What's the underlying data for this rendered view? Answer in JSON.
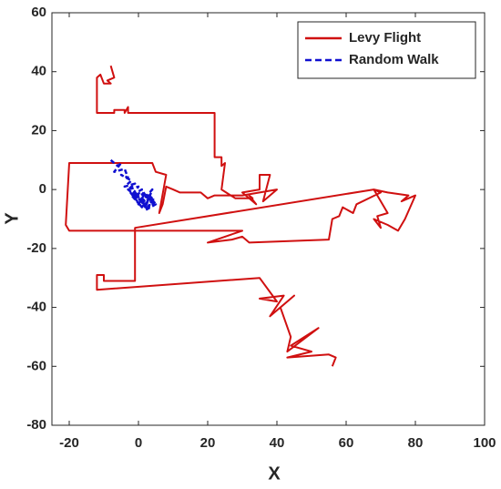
{
  "chart_data": {
    "type": "line",
    "x_label": "X",
    "y_label": "Y",
    "xlim": [
      -25,
      100
    ],
    "xticks": [
      -20,
      0,
      20,
      40,
      60,
      80,
      100
    ],
    "ylim": [
      -80,
      60
    ],
    "yticks": [
      -80,
      -60,
      -40,
      -20,
      0,
      20,
      40,
      60
    ],
    "legend": "top-right",
    "series": [
      {
        "name": "Levy Flight",
        "color": "#d01010",
        "line_style": "solid",
        "x": [
          -8,
          -7,
          -9,
          -8,
          -10,
          -11,
          -12,
          -12,
          -7,
          -7,
          -4,
          -4,
          -3,
          -3,
          22,
          22,
          24,
          24,
          25,
          24,
          28,
          33,
          32,
          34,
          30,
          35,
          35,
          38,
          36,
          39,
          40,
          30,
          22,
          20,
          18,
          12,
          10,
          8,
          7,
          6,
          8,
          5,
          4,
          -20,
          -21,
          -20,
          30,
          20,
          27,
          30,
          32,
          55,
          56,
          58,
          59,
          62,
          63,
          70,
          68,
          72,
          78,
          76,
          80,
          77,
          75,
          72,
          68,
          70,
          69,
          72,
          68,
          -1,
          -1,
          -10,
          -10,
          -12,
          -12,
          35,
          40,
          35,
          42,
          38,
          45,
          41,
          44,
          43,
          52,
          44,
          50,
          43,
          55,
          57,
          56
        ],
        "values": [
          42,
          38,
          37,
          36,
          36,
          39,
          38,
          26,
          26,
          27,
          27,
          26,
          28,
          26,
          26,
          11,
          11,
          8,
          9,
          0,
          -3,
          -3,
          -2,
          -5,
          -1,
          0,
          5,
          5,
          -4,
          -1,
          0,
          -2,
          -2,
          -3,
          -1,
          -1,
          0,
          1,
          -5,
          -8,
          5,
          6,
          9,
          9,
          -12,
          -14,
          -14,
          -18,
          -17,
          -16,
          -18,
          -17,
          -10,
          -9,
          -6,
          -8,
          -5,
          -1,
          0,
          -1,
          -2,
          -4,
          -2,
          -10,
          -14,
          -12,
          -10,
          -13,
          -9,
          -8,
          0,
          -13,
          -31,
          -31,
          -29,
          -29,
          -34,
          -30,
          -38,
          -37,
          -36,
          -43,
          -36,
          -40,
          -50,
          -55,
          -47,
          -53,
          -55,
          -57,
          -56,
          -57,
          -60
        ]
      },
      {
        "name": "Random Walk",
        "color": "#1010d0",
        "line_style": "dashed",
        "x": [
          -8,
          -6,
          -5,
          -7,
          -4,
          -3,
          -5,
          -2,
          -4,
          -1,
          -3,
          0,
          -2,
          1,
          -1,
          2,
          0,
          3,
          1,
          4,
          2,
          5,
          3,
          1,
          4,
          2,
          0,
          3,
          -1,
          2,
          -2,
          1,
          -3,
          0,
          2,
          4,
          3,
          5,
          1,
          3
        ],
        "values": [
          10,
          8,
          9,
          6,
          7,
          4,
          5,
          3,
          1,
          2,
          0,
          1,
          -2,
          0,
          -3,
          -1,
          -5,
          -3,
          -6,
          -4,
          -7,
          -5,
          -2,
          -4,
          0,
          -6,
          -3,
          -7,
          -1,
          -4,
          -2,
          -6,
          0,
          -3,
          -5,
          -2,
          -6,
          -4,
          -1,
          -3
        ]
      }
    ]
  }
}
